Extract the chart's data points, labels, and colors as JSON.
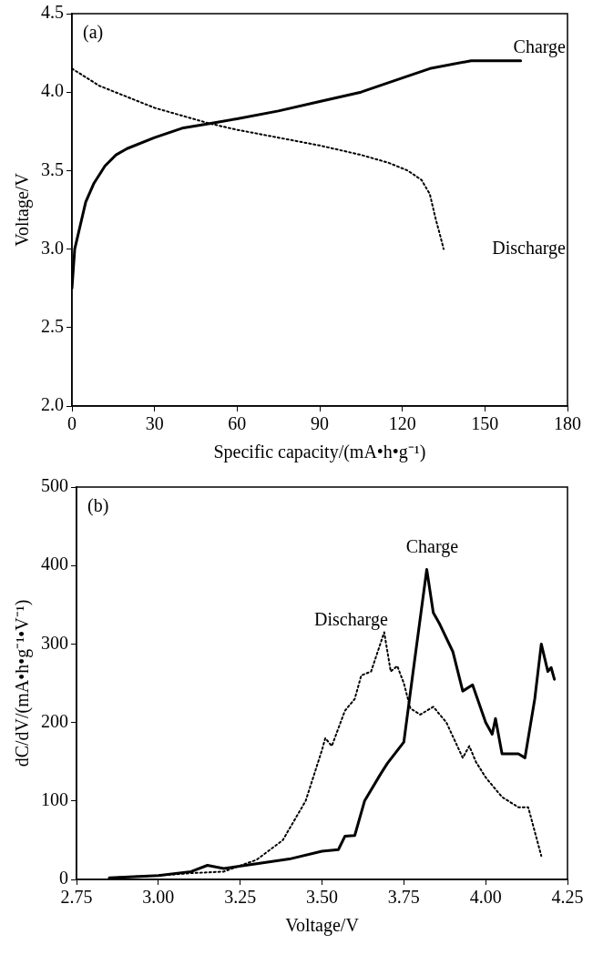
{
  "chart_data": [
    {
      "type": "line",
      "xlabel": "Specific capacity/(mA•h•g⁻¹)",
      "ylabel": "Voltage/V",
      "annotations": [
        "(a)"
      ],
      "xlim": [
        0,
        180
      ],
      "xticks": [
        0,
        30,
        60,
        90,
        120,
        150,
        180
      ],
      "ylim": [
        2.0,
        4.5
      ],
      "yticks": [
        {
          "value": 2.0,
          "label": "2.0"
        },
        2.5,
        {
          "value": 3.0,
          "label": "3.0"
        },
        3.5,
        {
          "value": 4.0,
          "label": "4.0"
        },
        4.5
      ],
      "series": [
        {
          "name": "Charge",
          "color": "#000000",
          "line_style": "solid",
          "x": [
            0,
            1,
            3,
            5,
            8,
            12,
            16,
            20,
            30,
            40,
            50,
            60,
            75,
            90,
            105,
            120,
            130,
            145,
            163
          ],
          "values": [
            2.75,
            3.0,
            3.15,
            3.3,
            3.42,
            3.53,
            3.6,
            3.64,
            3.71,
            3.77,
            3.8,
            3.83,
            3.88,
            3.94,
            4.0,
            4.09,
            4.15,
            4.2,
            4.2
          ]
        },
        {
          "name": "Discharge",
          "color": "#000000",
          "line_style": "dotted",
          "x": [
            0,
            10,
            20,
            30,
            40,
            50,
            60,
            75,
            90,
            105,
            115,
            122,
            127,
            130,
            132,
            134,
            135
          ],
          "values": [
            4.15,
            4.04,
            3.97,
            3.9,
            3.85,
            3.8,
            3.76,
            3.71,
            3.66,
            3.6,
            3.55,
            3.5,
            3.44,
            3.35,
            3.2,
            3.07,
            3.0
          ]
        }
      ]
    },
    {
      "type": "line",
      "xlabel": "Voltage/V",
      "ylabel": "dC/dV/(mA•h•g⁻¹•V⁻¹)",
      "annotations": [
        "(b)"
      ],
      "xlim": [
        2.75,
        4.25
      ],
      "xticks": [
        2.75,
        {
          "value": 3.0,
          "label": "3.00"
        },
        3.25,
        {
          "value": 3.5,
          "label": "3.50"
        },
        3.75,
        {
          "value": 4.0,
          "label": "4.00"
        },
        4.25
      ],
      "ylim": [
        0,
        500
      ],
      "yticks": [
        0,
        100,
        200,
        300,
        400,
        500
      ],
      "series": [
        {
          "name": "Charge",
          "color": "#000000",
          "line_style": "solid",
          "x": [
            2.85,
            3.0,
            3.1,
            3.15,
            3.2,
            3.3,
            3.4,
            3.5,
            3.55,
            3.57,
            3.6,
            3.63,
            3.68,
            3.7,
            3.75,
            3.78,
            3.82,
            3.84,
            3.86,
            3.9,
            3.93,
            3.96,
            4.0,
            4.02,
            4.03,
            4.05,
            4.1,
            4.12,
            4.15,
            4.17,
            4.19,
            4.2,
            4.21
          ],
          "values": [
            2,
            5,
            10,
            18,
            14,
            20,
            26,
            36,
            38,
            55,
            56,
            100,
            135,
            148,
            175,
            270,
            395,
            340,
            325,
            290,
            240,
            248,
            200,
            185,
            205,
            160,
            160,
            155,
            230,
            300,
            265,
            270,
            255
          ]
        },
        {
          "name": "Discharge",
          "color": "#000000",
          "line_style": "dotted",
          "x": [
            2.85,
            3.0,
            3.1,
            3.2,
            3.3,
            3.38,
            3.45,
            3.5,
            3.51,
            3.53,
            3.57,
            3.6,
            3.62,
            3.65,
            3.67,
            3.69,
            3.71,
            3.73,
            3.75,
            3.77,
            3.8,
            3.84,
            3.88,
            3.93,
            3.95,
            3.97,
            4.0,
            4.05,
            4.1,
            4.13,
            4.17
          ],
          "values": [
            2,
            5,
            8,
            10,
            25,
            50,
            100,
            165,
            180,
            170,
            215,
            230,
            260,
            265,
            290,
            315,
            265,
            272,
            250,
            218,
            210,
            220,
            200,
            155,
            170,
            150,
            130,
            105,
            92,
            92,
            30
          ]
        }
      ]
    }
  ]
}
